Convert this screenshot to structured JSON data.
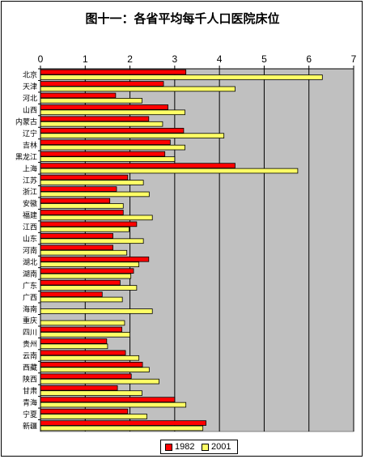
{
  "chart_data": {
    "type": "bar",
    "orientation": "horizontal",
    "title": "图十一：各省平均每千人口医院床位",
    "xlabel": "",
    "ylabel": "",
    "xlim": [
      0,
      7
    ],
    "xticks": [
      0,
      1,
      2,
      3,
      4,
      5,
      6,
      7
    ],
    "grid": "vertical",
    "legend_position": "bottom",
    "categories": [
      "北京",
      "天津",
      "河北",
      "山西",
      "内蒙古",
      "辽宁",
      "吉林",
      "黑龙江",
      "上海",
      "江苏",
      "浙江",
      "安徽",
      "福建",
      "江西",
      "山东",
      "河南",
      "湖北",
      "湖南",
      "广东",
      "广西",
      "海南",
      "重庆",
      "四川",
      "贵州",
      "云南",
      "西藏",
      "陕西",
      "甘肃",
      "青海",
      "宁夏",
      "新疆"
    ],
    "series": [
      {
        "name": "1982",
        "color": "#ff0000",
        "values": [
          3.25,
          2.75,
          1.68,
          2.85,
          2.42,
          3.2,
          2.9,
          2.78,
          4.35,
          1.95,
          1.7,
          1.55,
          1.85,
          2.15,
          1.62,
          1.62,
          2.42,
          2.08,
          1.78,
          1.38,
          0.0,
          0.0,
          1.82,
          1.48,
          1.9,
          2.28,
          2.03,
          1.72,
          3.0,
          1.95,
          3.7
        ]
      },
      {
        "name": "2001",
        "color": "#ffff66",
        "values": [
          6.3,
          4.35,
          2.27,
          3.23,
          2.73,
          4.1,
          3.23,
          3.0,
          5.75,
          2.3,
          2.43,
          1.85,
          2.5,
          1.98,
          2.3,
          1.93,
          2.2,
          2.02,
          2.15,
          1.83,
          2.5,
          1.88,
          2.0,
          1.5,
          2.2,
          2.43,
          2.65,
          2.27,
          3.25,
          2.38,
          3.63
        ]
      }
    ]
  }
}
